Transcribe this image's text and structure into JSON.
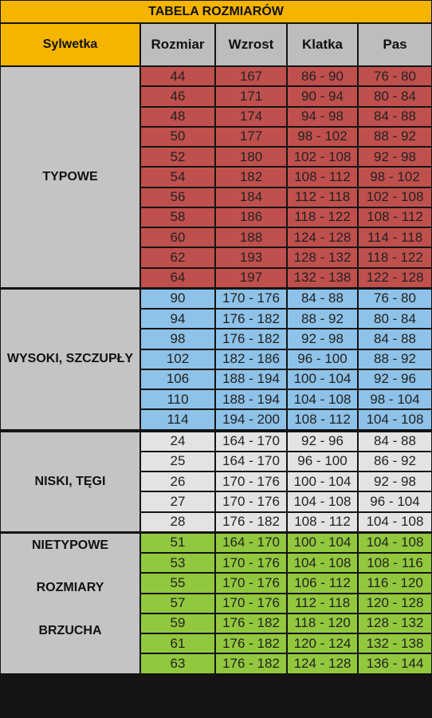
{
  "table": {
    "title": "TABELA ROZMIARÓW",
    "headers": [
      "Sylwetka",
      "Rozmiar",
      "Wzrost",
      "Klatka",
      "Pas"
    ],
    "groups": [
      {
        "label": [
          "TYPOWE"
        ],
        "color": "#c0504d",
        "rows": [
          [
            "44",
            "167",
            "86 - 90",
            "76 - 80"
          ],
          [
            "46",
            "171",
            "90 - 94",
            "80 - 84"
          ],
          [
            "48",
            "174",
            "94 - 98",
            "84 - 88"
          ],
          [
            "50",
            "177",
            "98 - 102",
            "88 - 92"
          ],
          [
            "52",
            "180",
            "102 - 108",
            "92 - 98"
          ],
          [
            "54",
            "182",
            "108 - 112",
            "98 - 102"
          ],
          [
            "56",
            "184",
            "112 - 118",
            "102 - 108"
          ],
          [
            "58",
            "186",
            "118 - 122",
            "108 - 112"
          ],
          [
            "60",
            "188",
            "124 - 128",
            "114 - 118"
          ],
          [
            "62",
            "193",
            "128 - 132",
            "118 - 122"
          ],
          [
            "64",
            "197",
            "132 - 138",
            "122 - 128"
          ]
        ]
      },
      {
        "label": [
          "WYSOKI, SZCZUPŁY"
        ],
        "color": "#8ec2e8",
        "rows": [
          [
            "90",
            "170 - 176",
            "84 - 88",
            "76 - 80"
          ],
          [
            "94",
            "176 - 182",
            "88 - 92",
            "80 - 84"
          ],
          [
            "98",
            "176 - 182",
            "92 - 98",
            "84 - 88"
          ],
          [
            "102",
            "182 - 186",
            "96 - 100",
            "88 - 92"
          ],
          [
            "106",
            "188 - 194",
            "100 - 104",
            "92 - 96"
          ],
          [
            "110",
            "188 - 194",
            "104 - 108",
            "98 - 104"
          ],
          [
            "114",
            "194 - 200",
            "108 - 112",
            "104 - 108"
          ]
        ]
      },
      {
        "label": [
          "NISKI, TĘGI"
        ],
        "color": "#e3e3e3",
        "rows": [
          [
            "24",
            "164 - 170",
            "92 - 96",
            "84 - 88"
          ],
          [
            "25",
            "164 - 170",
            "96 - 100",
            "86 - 92"
          ],
          [
            "26",
            "170 - 176",
            "100 - 104",
            "92 - 98"
          ],
          [
            "27",
            "170 - 176",
            "104 - 108",
            "96 - 104"
          ],
          [
            "28",
            "176 - 182",
            "108 - 112",
            "104 - 108"
          ]
        ]
      },
      {
        "label": [
          "NIETYPOWE",
          "ROZMIARY",
          "BRZUCHA"
        ],
        "color": "#92c83e",
        "rows": [
          [
            "51",
            "164 - 170",
            "100 - 104",
            "104 - 108"
          ],
          [
            "53",
            "170 - 176",
            "104 - 108",
            "108 - 116"
          ],
          [
            "55",
            "170 - 176",
            "106 - 112",
            "116 - 120"
          ],
          [
            "57",
            "170 - 176",
            "112 - 118",
            "120 - 128"
          ],
          [
            "59",
            "176 - 182",
            "118 - 120",
            "128 - 132"
          ],
          [
            "61",
            "176 - 182",
            "120 - 124",
            "132 - 138"
          ],
          [
            "63",
            "176 - 182",
            "124 - 128",
            "136 - 144"
          ]
        ]
      }
    ]
  }
}
